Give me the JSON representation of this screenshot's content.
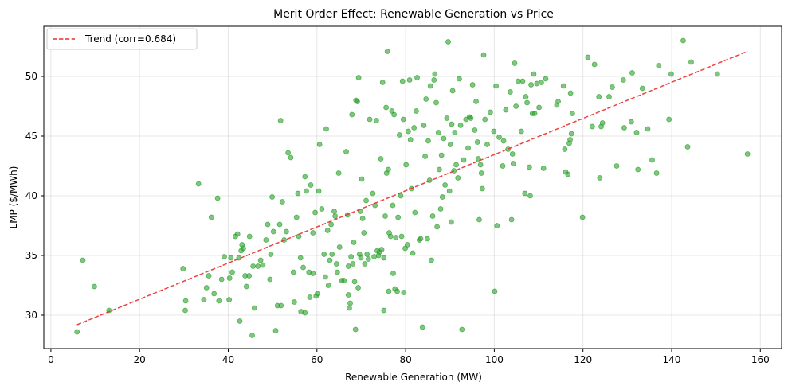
{
  "chart_data": {
    "type": "scatter",
    "title": "Merit Order Effect: Renewable Generation vs Price",
    "xlabel": "Renewable Generation (MW)",
    "ylabel": "LMP ($/MWh)",
    "xlim": [
      -1.6,
      164.8
    ],
    "ylim": [
      27.2,
      54.2
    ],
    "xticks": [
      0,
      20,
      40,
      60,
      80,
      100,
      120,
      140,
      160
    ],
    "yticks": [
      30,
      35,
      40,
      45,
      50
    ],
    "grid": true,
    "legend": {
      "position": "top-left",
      "entries": [
        "Trend (corr=0.684)"
      ]
    },
    "colors": {
      "points": "#2ca02c",
      "trend": "#e8302e"
    },
    "trend": {
      "name": "Trend (corr=0.684)",
      "x": [
        5.9,
        157.1
      ],
      "y": [
        29.2,
        52.1
      ]
    },
    "series": [
      {
        "name": "observations",
        "points": [
          [
            5.9,
            28.6
          ],
          [
            7.2,
            34.6
          ],
          [
            9.8,
            32.4
          ],
          [
            13.1,
            30.4
          ],
          [
            29.8,
            33.9
          ],
          [
            30.4,
            31.2
          ],
          [
            30.3,
            30.4
          ],
          [
            33.3,
            41.0
          ],
          [
            34.5,
            31.3
          ],
          [
            35.1,
            32.3
          ],
          [
            35.6,
            33.3
          ],
          [
            36.2,
            38.2
          ],
          [
            36.8,
            31.8
          ],
          [
            37.6,
            39.8
          ],
          [
            37.9,
            31.2
          ],
          [
            38.5,
            33.0
          ],
          [
            39.1,
            34.9
          ],
          [
            40.2,
            31.3
          ],
          [
            40.3,
            33.1
          ],
          [
            40.6,
            34.8
          ],
          [
            40.9,
            33.6
          ],
          [
            41.6,
            36.6
          ],
          [
            42.1,
            36.8
          ],
          [
            42.4,
            34.8
          ],
          [
            42.6,
            29.5
          ],
          [
            42.9,
            35.4
          ],
          [
            43.1,
            35.9
          ],
          [
            43.4,
            35.6
          ],
          [
            43.8,
            33.3
          ],
          [
            44.1,
            32.4
          ],
          [
            44.7,
            33.3
          ],
          [
            44.8,
            36.6
          ],
          [
            45.4,
            28.3
          ],
          [
            45.6,
            34.1
          ],
          [
            45.9,
            30.6
          ],
          [
            46.7,
            34.1
          ],
          [
            47.3,
            34.6
          ],
          [
            47.8,
            34.2
          ],
          [
            48.5,
            36.3
          ],
          [
            48.9,
            37.6
          ],
          [
            49.4,
            33.0
          ],
          [
            49.6,
            35.1
          ],
          [
            49.9,
            39.9
          ],
          [
            50.2,
            37.0
          ],
          [
            50.7,
            28.7
          ],
          [
            51.1,
            30.8
          ],
          [
            51.6,
            37.6
          ],
          [
            51.9,
            30.8
          ],
          [
            51.8,
            46.3
          ],
          [
            52.2,
            39.5
          ],
          [
            52.6,
            36.3
          ],
          [
            53.1,
            37.0
          ],
          [
            53.5,
            43.6
          ],
          [
            54.1,
            43.2
          ],
          [
            54.7,
            33.6
          ],
          [
            54.9,
            31.1
          ],
          [
            55.4,
            38.2
          ],
          [
            55.7,
            40.2
          ],
          [
            55.9,
            36.6
          ],
          [
            56.3,
            34.8
          ],
          [
            56.4,
            30.3
          ],
          [
            56.9,
            34.0
          ],
          [
            57.3,
            30.2
          ],
          [
            57.3,
            41.6
          ],
          [
            57.6,
            40.4
          ],
          [
            58.2,
            33.6
          ],
          [
            58.4,
            31.5
          ],
          [
            58.6,
            40.9
          ],
          [
            59.1,
            36.9
          ],
          [
            59.1,
            33.5
          ],
          [
            59.6,
            38.6
          ],
          [
            59.8,
            31.6
          ],
          [
            60.1,
            31.8
          ],
          [
            60.4,
            40.4
          ],
          [
            60.6,
            44.3
          ],
          [
            61.1,
            38.9
          ],
          [
            61.6,
            35.1
          ],
          [
            61.9,
            33.2
          ],
          [
            62.1,
            45.6
          ],
          [
            62.4,
            37.1
          ],
          [
            62.6,
            32.5
          ],
          [
            62.9,
            34.6
          ],
          [
            63.2,
            37.6
          ],
          [
            63.4,
            35.1
          ],
          [
            63.9,
            38.7
          ],
          [
            64.1,
            38.3
          ],
          [
            64.4,
            34.3
          ],
          [
            64.6,
            33.6
          ],
          [
            64.9,
            41.9
          ],
          [
            65.1,
            35.7
          ],
          [
            65.6,
            32.9
          ],
          [
            66.1,
            32.9
          ],
          [
            66.6,
            43.7
          ],
          [
            66.9,
            38.4
          ],
          [
            67.1,
            34.1
          ],
          [
            67.1,
            31.7
          ],
          [
            67.3,
            30.6
          ],
          [
            67.5,
            31.0
          ],
          [
            67.7,
            34.9
          ],
          [
            67.9,
            46.8
          ],
          [
            68.1,
            34.3
          ],
          [
            68.3,
            36.1
          ],
          [
            68.5,
            32.8
          ],
          [
            68.7,
            28.8
          ],
          [
            68.8,
            48.0
          ],
          [
            69.1,
            47.9
          ],
          [
            69.3,
            32.3
          ],
          [
            69.4,
            49.9
          ],
          [
            69.6,
            35.1
          ],
          [
            69.8,
            38.7
          ],
          [
            69.9,
            34.8
          ],
          [
            70.1,
            41.4
          ],
          [
            70.3,
            38.1
          ],
          [
            70.6,
            36.9
          ],
          [
            70.8,
            34.3
          ],
          [
            71.1,
            39.6
          ],
          [
            71.3,
            35.1
          ],
          [
            71.6,
            34.7
          ],
          [
            71.9,
            46.4
          ],
          [
            72.6,
            40.2
          ],
          [
            72.9,
            34.9
          ],
          [
            73.1,
            39.2
          ],
          [
            73.4,
            46.3
          ],
          [
            73.6,
            35.4
          ],
          [
            73.9,
            35.0
          ],
          [
            74.1,
            35.3
          ],
          [
            74.4,
            43.1
          ],
          [
            74.6,
            35.5
          ],
          [
            74.8,
            49.5
          ],
          [
            75.1,
            34.8
          ],
          [
            75.1,
            30.4
          ],
          [
            75.4,
            38.3
          ],
          [
            75.6,
            47.4
          ],
          [
            75.7,
            41.9
          ],
          [
            75.9,
            52.1
          ],
          [
            76.1,
            42.2
          ],
          [
            76.2,
            32.0
          ],
          [
            76.3,
            36.9
          ],
          [
            76.6,
            36.6
          ],
          [
            76.9,
            47.1
          ],
          [
            77.1,
            39.2
          ],
          [
            77.2,
            33.5
          ],
          [
            77.4,
            46.8
          ],
          [
            77.6,
            32.2
          ],
          [
            77.8,
            36.5
          ],
          [
            78.1,
            32.0
          ],
          [
            78.3,
            38.2
          ],
          [
            78.6,
            45.1
          ],
          [
            78.9,
            40.0
          ],
          [
            79.1,
            36.6
          ],
          [
            79.3,
            49.6
          ],
          [
            79.5,
            46.4
          ],
          [
            79.6,
            31.9
          ],
          [
            79.9,
            35.6
          ],
          [
            80.1,
            42.6
          ],
          [
            80.4,
            35.9
          ],
          [
            80.6,
            45.4
          ],
          [
            80.9,
            49.7
          ],
          [
            81.1,
            44.7
          ],
          [
            81.3,
            40.6
          ],
          [
            81.6,
            35.2
          ],
          [
            81.9,
            45.7
          ],
          [
            82.1,
            38.6
          ],
          [
            82.4,
            47.1
          ],
          [
            82.6,
            49.9
          ],
          [
            83.1,
            36.3
          ],
          [
            83.4,
            36.4
          ],
          [
            83.8,
            29.0
          ],
          [
            84.1,
            45.9
          ],
          [
            84.4,
            43.3
          ],
          [
            84.6,
            48.1
          ],
          [
            84.9,
            36.4
          ],
          [
            85.1,
            44.6
          ],
          [
            85.4,
            41.3
          ],
          [
            85.6,
            49.2
          ],
          [
            85.8,
            34.6
          ],
          [
            86.1,
            38.3
          ],
          [
            86.4,
            49.7
          ],
          [
            86.6,
            50.2
          ],
          [
            86.9,
            47.8
          ],
          [
            87.1,
            37.4
          ],
          [
            87.4,
            45.3
          ],
          [
            87.6,
            42.2
          ],
          [
            87.9,
            38.9
          ],
          [
            88.1,
            43.4
          ],
          [
            88.3,
            39.9
          ],
          [
            88.6,
            44.8
          ],
          [
            88.9,
            40.9
          ],
          [
            89.3,
            46.5
          ],
          [
            89.6,
            52.9
          ],
          [
            89.9,
            40.4
          ],
          [
            90.1,
            44.3
          ],
          [
            90.3,
            37.8
          ],
          [
            90.4,
            46.0
          ],
          [
            90.6,
            48.8
          ],
          [
            90.9,
            42.1
          ],
          [
            91.1,
            45.3
          ],
          [
            91.4,
            42.6
          ],
          [
            91.8,
            41.5
          ],
          [
            92.1,
            49.8
          ],
          [
            92.4,
            45.9
          ],
          [
            92.7,
            28.8
          ],
          [
            93.1,
            43.0
          ],
          [
            93.6,
            46.4
          ],
          [
            94.1,
            44.0
          ],
          [
            94.4,
            46.6
          ],
          [
            94.7,
            46.5
          ],
          [
            95.1,
            49.3
          ],
          [
            95.6,
            45.5
          ],
          [
            95.9,
            47.9
          ],
          [
            96.2,
            44.5
          ],
          [
            96.4,
            43.1
          ],
          [
            96.6,
            38.0
          ],
          [
            96.9,
            42.6
          ],
          [
            97.1,
            41.9
          ],
          [
            97.3,
            40.6
          ],
          [
            97.6,
            51.8
          ],
          [
            97.9,
            46.4
          ],
          [
            98.4,
            44.3
          ],
          [
            99.1,
            47.0
          ],
          [
            99.9,
            45.4
          ],
          [
            100.1,
            32.0
          ],
          [
            100.4,
            49.2
          ],
          [
            100.6,
            37.5
          ],
          [
            101.1,
            44.9
          ],
          [
            101.9,
            42.5
          ],
          [
            102.1,
            44.6
          ],
          [
            102.6,
            47.2
          ],
          [
            103.1,
            43.9
          ],
          [
            103.6,
            48.7
          ],
          [
            103.9,
            38.0
          ],
          [
            104.1,
            43.5
          ],
          [
            104.3,
            42.7
          ],
          [
            104.6,
            51.1
          ],
          [
            104.9,
            47.5
          ],
          [
            105.4,
            49.6
          ],
          [
            106.1,
            45.4
          ],
          [
            106.4,
            49.6
          ],
          [
            106.9,
            40.2
          ],
          [
            107.1,
            48.3
          ],
          [
            107.4,
            47.8
          ],
          [
            107.9,
            42.4
          ],
          [
            108.1,
            40.0
          ],
          [
            108.3,
            49.3
          ],
          [
            108.6,
            46.9
          ],
          [
            108.9,
            50.2
          ],
          [
            109.1,
            46.9
          ],
          [
            109.6,
            49.4
          ],
          [
            110.1,
            47.4
          ],
          [
            110.6,
            49.5
          ],
          [
            111.1,
            42.3
          ],
          [
            111.6,
            49.8
          ],
          [
            114.1,
            47.6
          ],
          [
            114.4,
            47.9
          ],
          [
            115.6,
            49.2
          ],
          [
            115.9,
            43.9
          ],
          [
            116.1,
            42.0
          ],
          [
            116.6,
            41.8
          ],
          [
            116.9,
            44.4
          ],
          [
            117.1,
            44.7
          ],
          [
            117.2,
            48.6
          ],
          [
            117.4,
            45.2
          ],
          [
            117.6,
            46.9
          ],
          [
            119.9,
            38.2
          ],
          [
            121.1,
            51.6
          ],
          [
            122.1,
            45.8
          ],
          [
            122.6,
            51.0
          ],
          [
            123.6,
            48.3
          ],
          [
            123.8,
            41.5
          ],
          [
            124.1,
            45.8
          ],
          [
            124.4,
            46.1
          ],
          [
            125.9,
            48.3
          ],
          [
            126.6,
            49.1
          ],
          [
            127.6,
            42.5
          ],
          [
            129.1,
            49.7
          ],
          [
            129.3,
            45.7
          ],
          [
            130.9,
            46.2
          ],
          [
            131.1,
            50.3
          ],
          [
            132.1,
            45.3
          ],
          [
            132.4,
            42.2
          ],
          [
            133.4,
            49.0
          ],
          [
            134.6,
            45.6
          ],
          [
            135.6,
            43.0
          ],
          [
            136.6,
            41.9
          ],
          [
            137.1,
            50.9
          ],
          [
            139.4,
            46.4
          ],
          [
            139.9,
            50.2
          ],
          [
            142.6,
            53.0
          ],
          [
            143.6,
            44.1
          ],
          [
            144.4,
            51.2
          ],
          [
            150.3,
            50.2
          ],
          [
            157.1,
            43.5
          ]
        ]
      }
    ]
  }
}
